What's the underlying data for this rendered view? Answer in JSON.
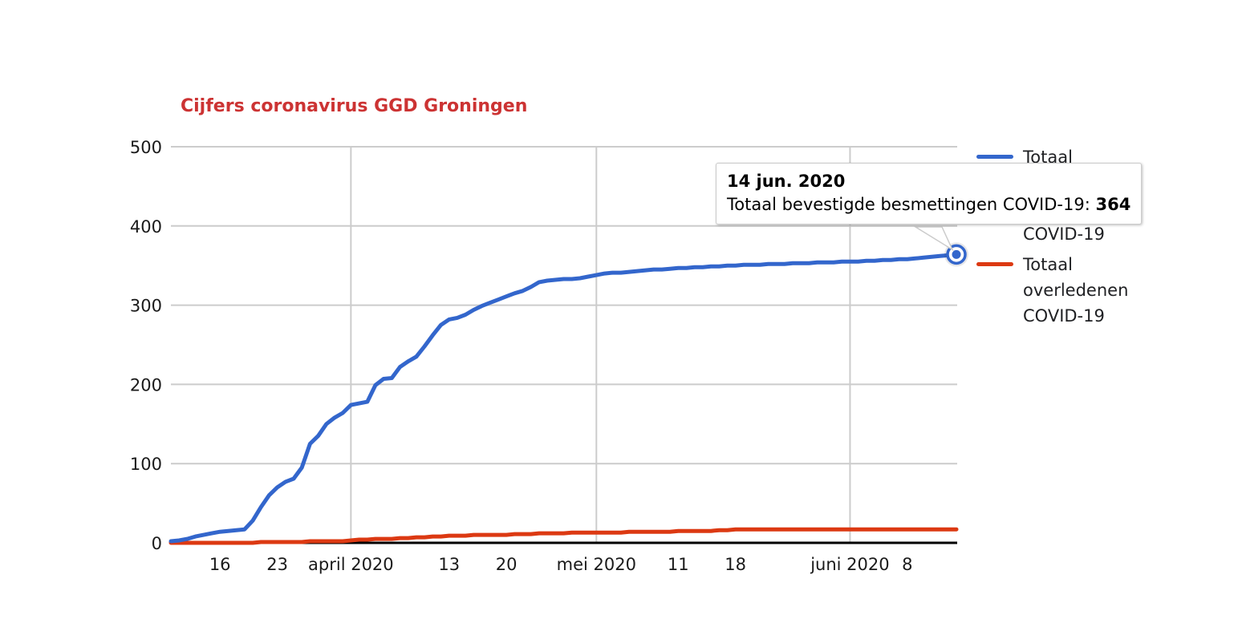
{
  "title": "Cijfers coronavirus GGD Groningen",
  "colors": {
    "title": "#cc3333",
    "cases_line": "#3366cc",
    "deaths_line": "#dc3912",
    "gridline": "#cccccc",
    "axis_line": "#000000",
    "axis_text": "#1a1a1a",
    "tooltip_border": "#cbcbcb"
  },
  "tooltip": {
    "date": "14 jun. 2020",
    "label": "Totaal bevestigde besmettingen COVID-19:",
    "value": "364"
  },
  "legend": {
    "position": "right",
    "items": [
      {
        "label": "Totaal bevestigde besmettingen COVID-19",
        "color": "#3366cc"
      },
      {
        "label": "Totaal overledenen COVID-19",
        "color": "#dc3912"
      }
    ]
  },
  "chart_data": {
    "type": "line",
    "title": "Cijfers coronavirus GGD Groningen",
    "x_start_date": "2020-03-10",
    "x_end_date": "2020-06-14",
    "x_interval": "daily",
    "ylim": [
      0,
      500
    ],
    "y_ticks": [
      0,
      100,
      200,
      300,
      400,
      500
    ],
    "y_tick_labels": [
      "0",
      "100",
      "200",
      "300",
      "400",
      "500"
    ],
    "x_ticks": [
      {
        "day": 6,
        "label": "16",
        "month_start": false
      },
      {
        "day": 13,
        "label": "23",
        "month_start": false
      },
      {
        "day": 22,
        "label": "april 2020",
        "month_start": true
      },
      {
        "day": 34,
        "label": "13",
        "month_start": false
      },
      {
        "day": 41,
        "label": "20",
        "month_start": false
      },
      {
        "day": 52,
        "label": "mei 2020",
        "month_start": true
      },
      {
        "day": 62,
        "label": "11",
        "month_start": false
      },
      {
        "day": 69,
        "label": "18",
        "month_start": false
      },
      {
        "day": 83,
        "label": "juni 2020",
        "month_start": true
      },
      {
        "day": 90,
        "label": "8",
        "month_start": false
      }
    ],
    "grid": {
      "horizontal": true,
      "vertical_on_month_start": true
    },
    "highlighted_point": {
      "series": "Totaal bevestigde besmettingen COVID-19",
      "date": "14 jun. 2020",
      "value": 364
    },
    "series": [
      {
        "name": "Totaal bevestigde besmettingen COVID-19",
        "color": "#3366cc",
        "values": [
          2,
          3,
          5,
          8,
          10,
          12,
          14,
          15,
          16,
          17,
          28,
          45,
          60,
          70,
          77,
          81,
          95,
          125,
          135,
          150,
          158,
          164,
          174,
          176,
          178,
          199,
          207,
          208,
          222,
          229,
          235,
          248,
          262,
          275,
          282,
          284,
          288,
          294,
          299,
          303,
          307,
          311,
          315,
          318,
          323,
          329,
          331,
          332,
          333,
          333,
          334,
          336,
          338,
          340,
          341,
          341,
          342,
          343,
          344,
          345,
          345,
          346,
          347,
          347,
          348,
          348,
          349,
          349,
          350,
          350,
          351,
          351,
          351,
          352,
          352,
          352,
          353,
          353,
          353,
          354,
          354,
          354,
          355,
          355,
          355,
          356,
          356,
          357,
          357,
          358,
          358,
          359,
          360,
          361,
          362,
          363,
          364
        ]
      },
      {
        "name": "Totaal overledenen COVID-19",
        "color": "#dc3912",
        "values": [
          0,
          0,
          0,
          0,
          0,
          0,
          0,
          0,
          0,
          0,
          0,
          1,
          1,
          1,
          1,
          1,
          1,
          2,
          2,
          2,
          2,
          2,
          3,
          4,
          4,
          5,
          5,
          5,
          6,
          6,
          7,
          7,
          8,
          8,
          9,
          9,
          9,
          10,
          10,
          10,
          10,
          10,
          11,
          11,
          11,
          12,
          12,
          12,
          12,
          13,
          13,
          13,
          13,
          13,
          13,
          13,
          14,
          14,
          14,
          14,
          14,
          14,
          15,
          15,
          15,
          15,
          15,
          16,
          16,
          17,
          17,
          17,
          17,
          17,
          17,
          17,
          17,
          17,
          17,
          17,
          17,
          17,
          17,
          17,
          17,
          17,
          17,
          17,
          17,
          17,
          17,
          17,
          17,
          17,
          17,
          17,
          17
        ]
      }
    ]
  }
}
